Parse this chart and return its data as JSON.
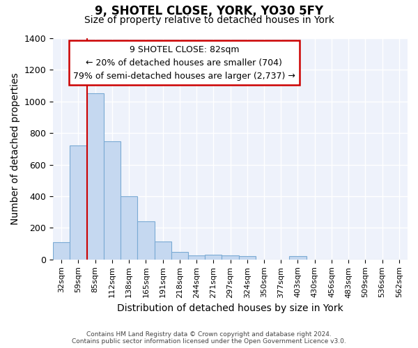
{
  "title": "9, SHOTEL CLOSE, YORK, YO30 5FY",
  "subtitle": "Size of property relative to detached houses in York",
  "xlabel": "Distribution of detached houses by size in York",
  "ylabel": "Number of detached properties",
  "categories": [
    "32sqm",
    "59sqm",
    "85sqm",
    "112sqm",
    "138sqm",
    "165sqm",
    "191sqm",
    "218sqm",
    "244sqm",
    "271sqm",
    "297sqm",
    "324sqm",
    "350sqm",
    "377sqm",
    "403sqm",
    "430sqm",
    "456sqm",
    "483sqm",
    "509sqm",
    "536sqm",
    "562sqm"
  ],
  "values": [
    108,
    720,
    1050,
    748,
    400,
    243,
    113,
    48,
    27,
    30,
    27,
    20,
    0,
    0,
    20,
    0,
    0,
    0,
    0,
    0,
    0
  ],
  "bar_color": "#c5d8f0",
  "bar_edge_color": "#7aaad4",
  "vline_color": "#cc0000",
  "vline_x": 1.5,
  "annotation_text": "9 SHOTEL CLOSE: 82sqm\n← 20% of detached houses are smaller (704)\n79% of semi-detached houses are larger (2,737) →",
  "annotation_box_color": "#ffffff",
  "annotation_box_edge": "#cc0000",
  "ylim": [
    0,
    1400
  ],
  "yticks": [
    0,
    200,
    400,
    600,
    800,
    1000,
    1200,
    1400
  ],
  "background_color": "#eef2fb",
  "grid_color": "#ffffff",
  "footer_line1": "Contains HM Land Registry data © Crown copyright and database right 2024.",
  "footer_line2": "Contains public sector information licensed under the Open Government Licence v3.0.",
  "title_fontsize": 12,
  "subtitle_fontsize": 10,
  "axis_label_fontsize": 10,
  "tick_fontsize": 8
}
